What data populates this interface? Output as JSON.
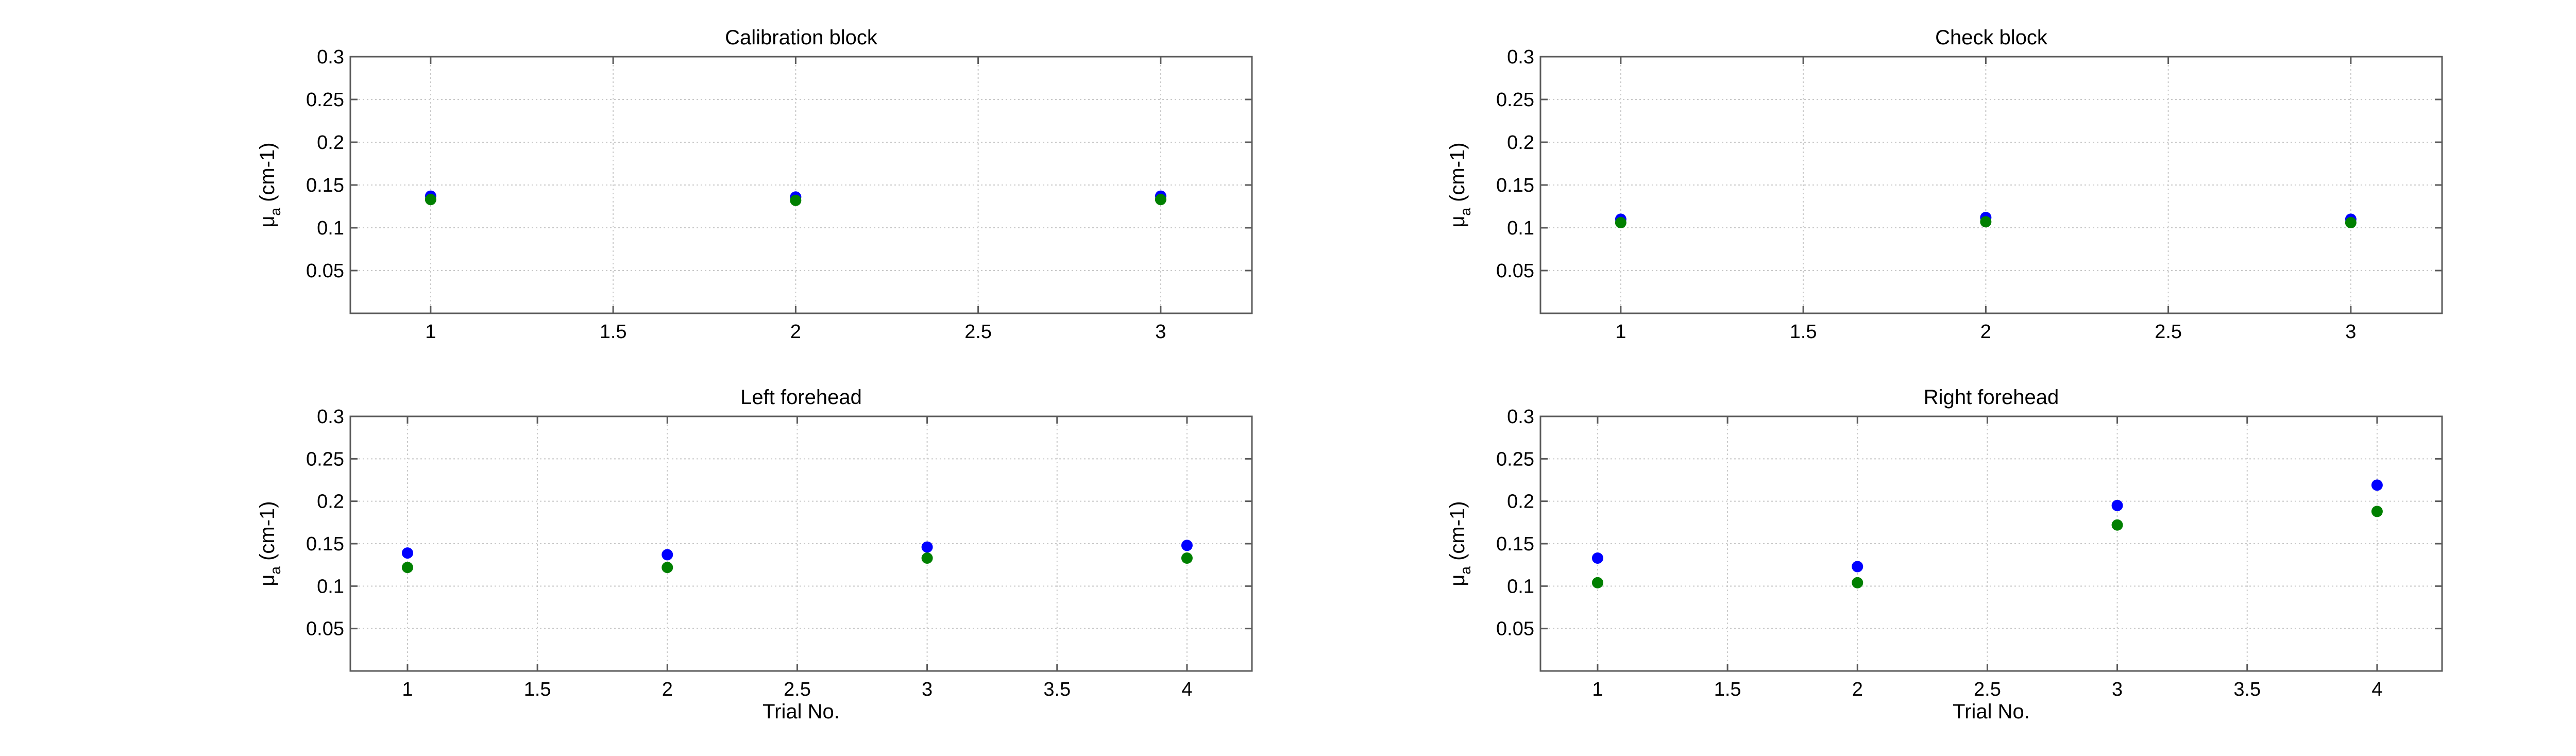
{
  "chart_data": [
    {
      "type": "scatter",
      "title": "Calibration block",
      "xlabel": "",
      "ylabel": "μ",
      "ylabel_sub": "a",
      "ylabel_suffix": " (cm-1)",
      "xlim": [
        0.78,
        3.25
      ],
      "ylim": [
        0,
        0.3
      ],
      "xticks": [
        1,
        1.5,
        2,
        2.5,
        3
      ],
      "xtick_labels": [
        "1",
        "1.5",
        "2",
        "2.5",
        "3"
      ],
      "yticks": [
        0.05,
        0.1,
        0.15,
        0.2,
        0.25,
        0.3
      ],
      "ytick_labels": [
        "0.05",
        "0.1",
        "0.15",
        "0.2",
        "0.25",
        "0.3"
      ],
      "grid": true,
      "series": [
        {
          "color": "#0000ff",
          "x": [
            1,
            2,
            3
          ],
          "y": [
            0.137,
            0.136,
            0.137
          ]
        },
        {
          "color": "#008000",
          "x": [
            1,
            2,
            3
          ],
          "y": [
            0.133,
            0.132,
            0.133
          ]
        }
      ]
    },
    {
      "type": "scatter",
      "title": "Check block",
      "xlabel": "",
      "ylabel": "μ",
      "ylabel_sub": "a",
      "ylabel_suffix": " (cm-1)",
      "xlim": [
        0.78,
        3.25
      ],
      "ylim": [
        0,
        0.3
      ],
      "xticks": [
        1,
        1.5,
        2,
        2.5,
        3
      ],
      "xtick_labels": [
        "1",
        "1.5",
        "2",
        "2.5",
        "3"
      ],
      "yticks": [
        0.05,
        0.1,
        0.15,
        0.2,
        0.25,
        0.3
      ],
      "ytick_labels": [
        "0.05",
        "0.1",
        "0.15",
        "0.2",
        "0.25",
        "0.3"
      ],
      "grid": true,
      "series": [
        {
          "color": "#0000ff",
          "x": [
            1,
            2,
            3
          ],
          "y": [
            0.11,
            0.112,
            0.11
          ]
        },
        {
          "color": "#008000",
          "x": [
            1,
            2,
            3
          ],
          "y": [
            0.106,
            0.107,
            0.106
          ]
        }
      ]
    },
    {
      "type": "scatter",
      "title": "Left forehead",
      "xlabel": "Trial No.",
      "ylabel": "μ",
      "ylabel_sub": "a",
      "ylabel_suffix": " (cm-1)",
      "xlim": [
        0.78,
        4.25
      ],
      "ylim": [
        0,
        0.3
      ],
      "xticks": [
        1,
        1.5,
        2,
        2.5,
        3,
        3.5,
        4
      ],
      "xtick_labels": [
        "1",
        "1.5",
        "2",
        "2.5",
        "3",
        "3.5",
        "4"
      ],
      "yticks": [
        0.05,
        0.1,
        0.15,
        0.2,
        0.25,
        0.3
      ],
      "ytick_labels": [
        "0.05",
        "0.1",
        "0.15",
        "0.2",
        "0.25",
        "0.3"
      ],
      "grid": true,
      "series": [
        {
          "color": "#0000ff",
          "x": [
            1,
            2,
            3,
            4
          ],
          "y": [
            0.139,
            0.137,
            0.146,
            0.148
          ]
        },
        {
          "color": "#008000",
          "x": [
            1,
            2,
            3,
            4
          ],
          "y": [
            0.122,
            0.122,
            0.133,
            0.133
          ]
        }
      ]
    },
    {
      "type": "scatter",
      "title": "Right forehead",
      "xlabel": "Trial No.",
      "ylabel": "μ",
      "ylabel_sub": "a",
      "ylabel_suffix": " (cm-1)",
      "xlim": [
        0.78,
        4.25
      ],
      "ylim": [
        0,
        0.3
      ],
      "xticks": [
        1,
        1.5,
        2,
        2.5,
        3,
        3.5,
        4
      ],
      "xtick_labels": [
        "1",
        "1.5",
        "2",
        "2.5",
        "3",
        "3.5",
        "4"
      ],
      "yticks": [
        0.05,
        0.1,
        0.15,
        0.2,
        0.25,
        0.3
      ],
      "ytick_labels": [
        "0.05",
        "0.1",
        "0.15",
        "0.2",
        "0.25",
        "0.3"
      ],
      "grid": true,
      "series": [
        {
          "color": "#0000ff",
          "x": [
            1,
            2,
            3,
            4
          ],
          "y": [
            0.133,
            0.123,
            0.195,
            0.219
          ]
        },
        {
          "color": "#008000",
          "x": [
            1,
            2,
            3,
            4
          ],
          "y": [
            0.104,
            0.104,
            0.172,
            0.188
          ]
        }
      ]
    }
  ]
}
